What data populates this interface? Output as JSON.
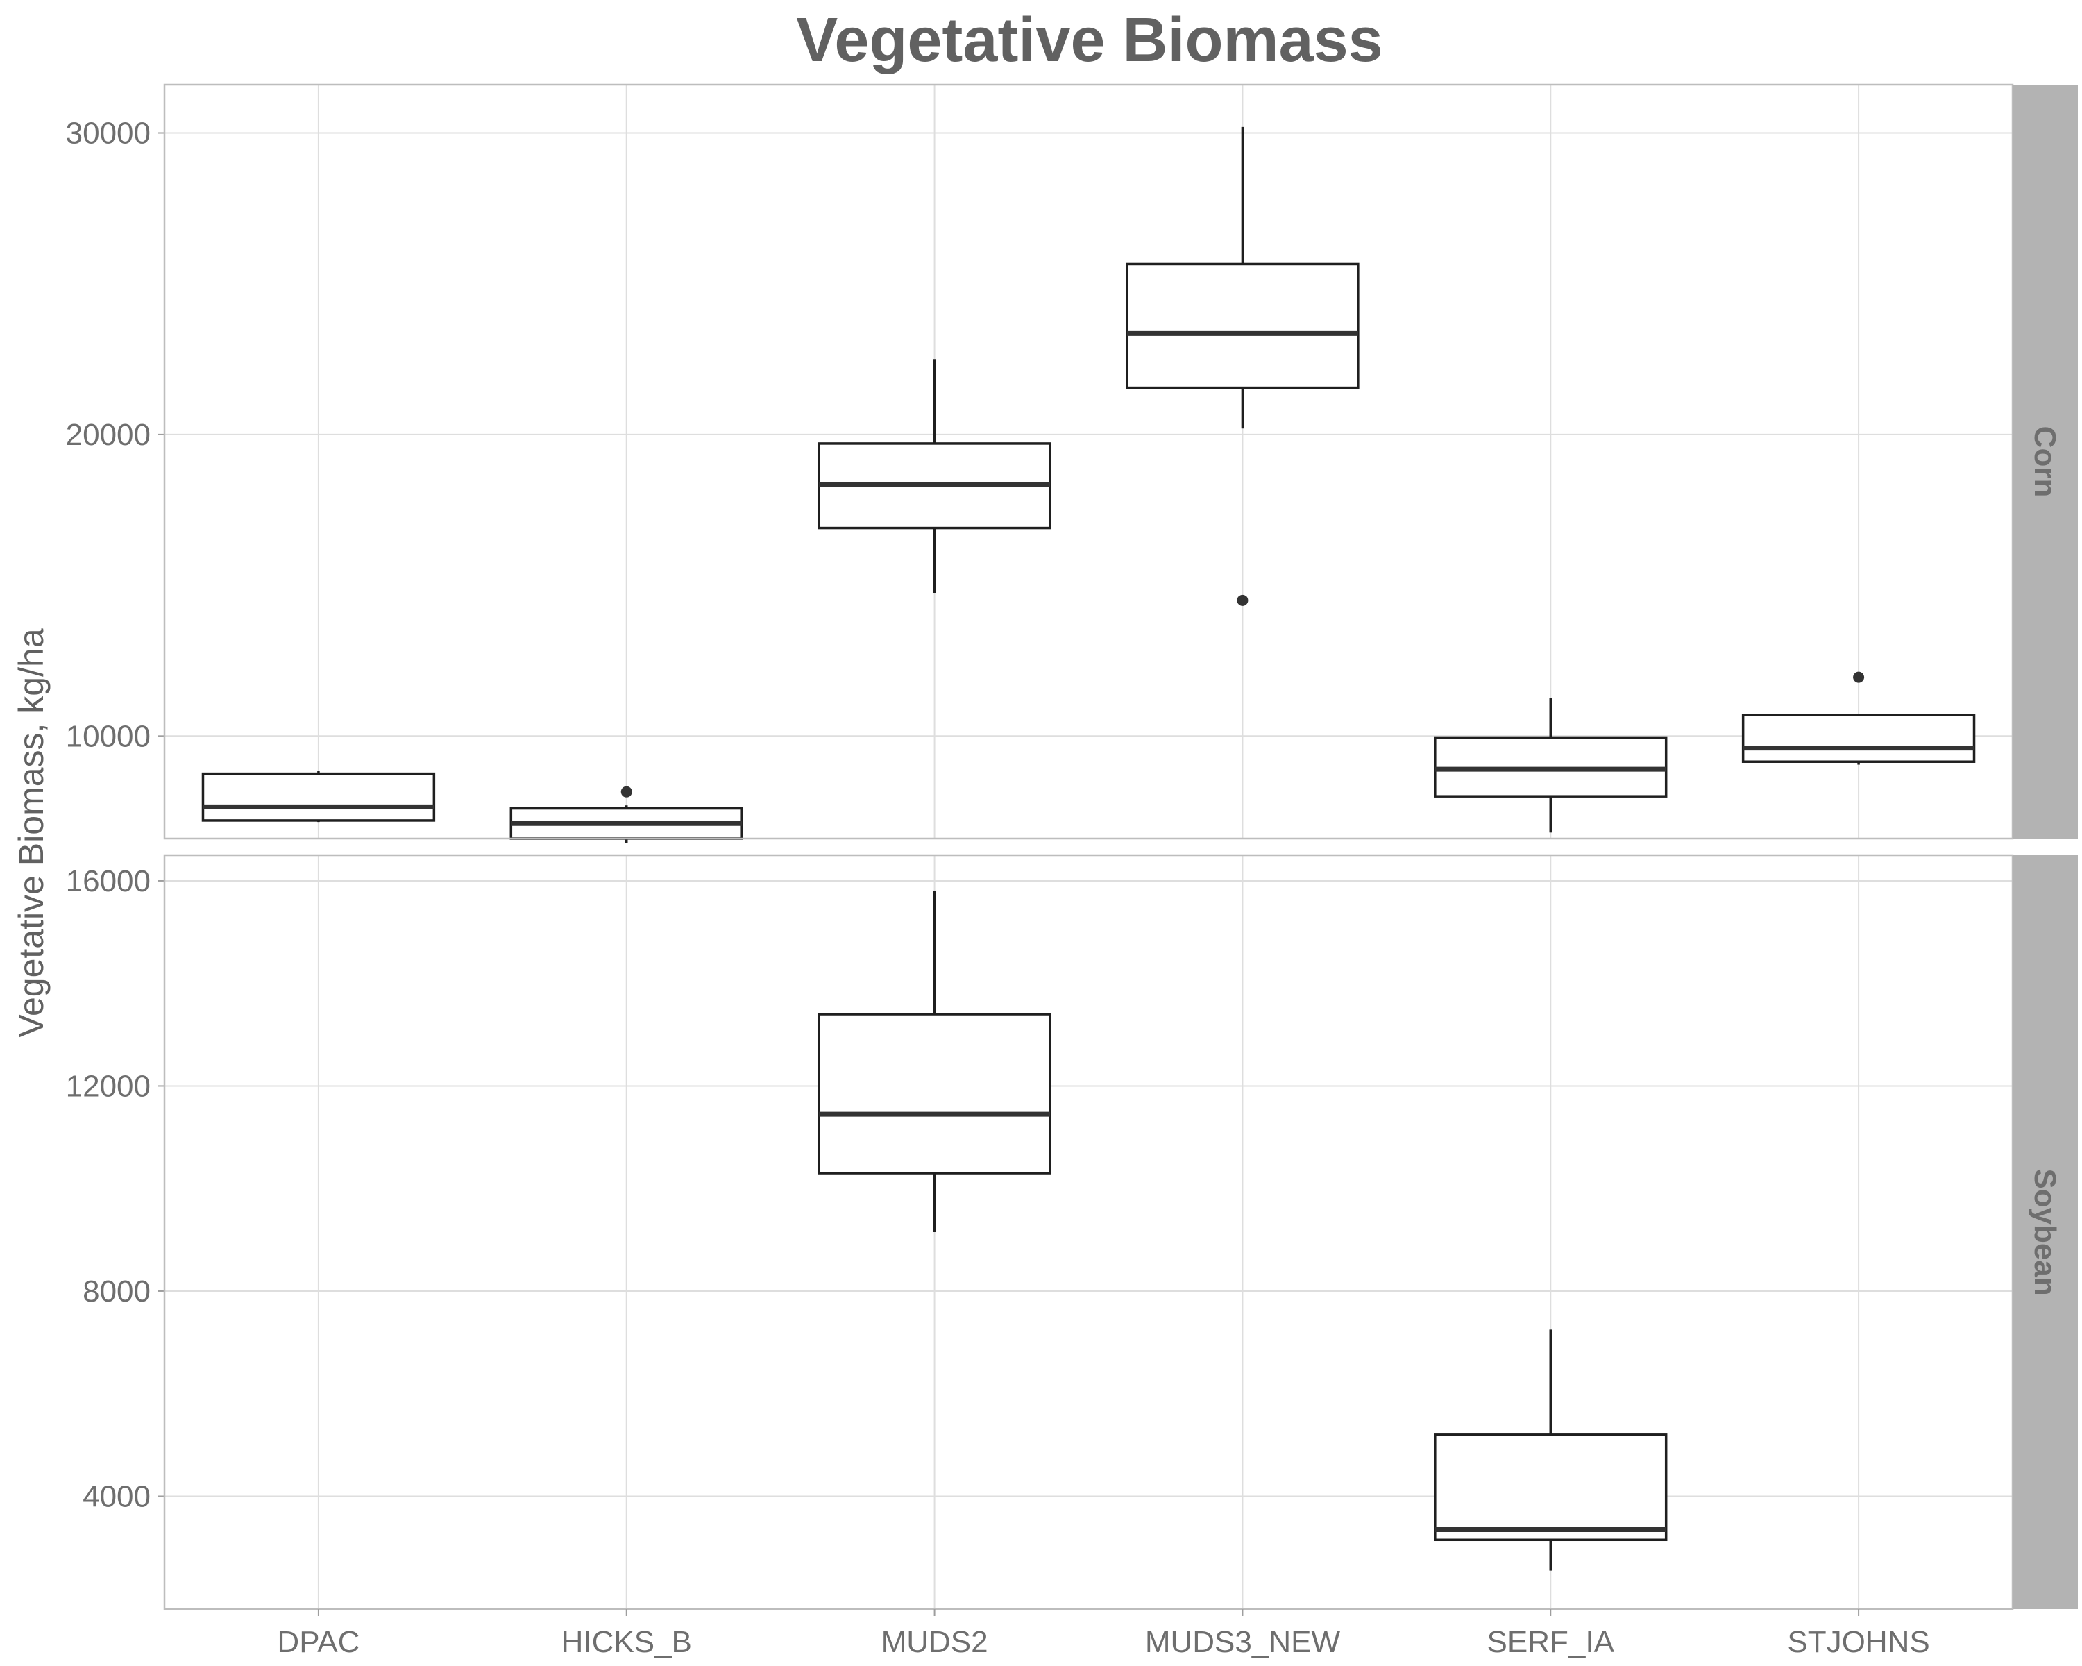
{
  "chart_data": {
    "type": "boxplot",
    "title": "Vegetative Biomass",
    "xlabel": "",
    "ylabel": "Vegetative Biomass, kg/ha",
    "categories": [
      "DPAC",
      "HICKS_B",
      "MUDS2",
      "MUDS3_NEW",
      "SERF_IA",
      "STJOHNS"
    ],
    "grid": true,
    "legend": "none",
    "colors": {
      "panel_border": "#bdbdbd",
      "grid": "#dedede",
      "box_stroke": "#1f1f1f",
      "strip_fill": "#b3b3b3",
      "text": "#6e6e6e"
    },
    "panels": [
      {
        "name": "Corn",
        "ylim": [
          6600,
          31600
        ],
        "yticks": [
          10000,
          20000,
          30000
        ],
        "ytick_labels": [
          "10000",
          "20000",
          "30000"
        ],
        "boxes": [
          {
            "category": "DPAC",
            "whisker_low": 7150,
            "q1": 7200,
            "median": 7650,
            "q3": 8750,
            "whisker_high": 8850,
            "outliers": []
          },
          {
            "category": "HICKS_B",
            "whisker_low": 6450,
            "q1": 6600,
            "median": 7100,
            "q3": 7600,
            "whisker_high": 7700,
            "outliers": [
              8150
            ]
          },
          {
            "category": "MUDS2",
            "whisker_low": 14750,
            "q1": 16900,
            "median": 18350,
            "q3": 19700,
            "whisker_high": 22500,
            "outliers": []
          },
          {
            "category": "MUDS3_NEW",
            "whisker_low": 20200,
            "q1": 21550,
            "median": 23350,
            "q3": 25650,
            "whisker_high": 30200,
            "outliers": [
              14500
            ]
          },
          {
            "category": "SERF_IA",
            "whisker_low": 6800,
            "q1": 8000,
            "median": 8900,
            "q3": 9950,
            "whisker_high": 11250,
            "outliers": []
          },
          {
            "category": "STJOHNS",
            "whisker_low": 9050,
            "q1": 9150,
            "median": 9600,
            "q3": 10700,
            "whisker_high": 10700,
            "outliers": [
              11950
            ]
          }
        ]
      },
      {
        "name": "Soybean",
        "ylim": [
          1800,
          16500
        ],
        "yticks": [
          4000,
          8000,
          12000,
          16000
        ],
        "ytick_labels": [
          "4000",
          "8000",
          "12000",
          "16000"
        ],
        "boxes": [
          {
            "category": "MUDS2",
            "whisker_low": 9150,
            "q1": 10300,
            "median": 11450,
            "q3": 13400,
            "whisker_high": 15800,
            "outliers": []
          },
          {
            "category": "SERF_IA",
            "whisker_low": 2550,
            "q1": 3150,
            "median": 3350,
            "q3": 5200,
            "whisker_high": 7250,
            "outliers": []
          }
        ]
      }
    ]
  }
}
